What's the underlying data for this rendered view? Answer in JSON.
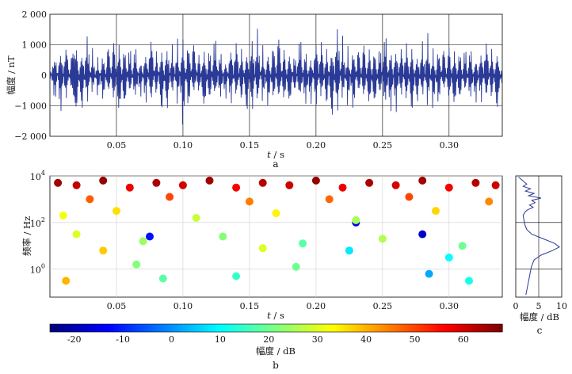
{
  "chart_data": [
    {
      "panel": "a",
      "type": "line",
      "panel_label": "a",
      "xlabel_var": "t",
      "xlabel_unit": " / s",
      "ylabel": "幅度 / nT",
      "xlim": [
        0.0,
        0.34
      ],
      "ylim": [
        -2000,
        2000
      ],
      "x_ticks": [
        0.05,
        0.1,
        0.15,
        0.2,
        0.25,
        0.3
      ],
      "x_tick_labels": [
        "0.05",
        "0.10",
        "0.15",
        "0.20",
        "0.25",
        "0.30"
      ],
      "y_ticks": [
        2000,
        1000,
        0,
        -1000,
        -2000
      ],
      "y_tick_labels": [
        "2 000",
        "1 000",
        "0",
        "−1 000",
        "−2 000"
      ],
      "grid": true,
      "color": "#2a3a96",
      "series": [
        {
          "x": [
            0.0,
            0.004,
            0.008,
            0.012,
            0.016,
            0.02,
            0.024,
            0.028,
            0.032,
            0.036,
            0.04,
            0.044,
            0.048,
            0.052,
            0.056,
            0.06,
            0.064,
            0.068,
            0.072,
            0.076,
            0.08,
            0.084,
            0.088,
            0.092,
            0.096,
            0.1,
            0.104,
            0.108,
            0.112,
            0.116,
            0.12,
            0.124,
            0.128,
            0.132,
            0.136,
            0.14,
            0.144,
            0.148,
            0.152,
            0.156,
            0.16,
            0.164,
            0.168,
            0.172,
            0.176,
            0.18,
            0.184,
            0.188,
            0.192,
            0.196,
            0.2,
            0.204,
            0.208,
            0.212,
            0.216,
            0.22,
            0.224,
            0.228,
            0.232,
            0.236,
            0.24,
            0.244,
            0.248,
            0.252,
            0.256,
            0.26,
            0.264,
            0.268,
            0.272,
            0.276,
            0.28,
            0.284,
            0.288,
            0.292,
            0.296,
            0.3,
            0.304,
            0.308,
            0.312,
            0.316,
            0.32,
            0.324,
            0.328,
            0.332,
            0.336,
            0.34
          ],
          "y": [
            350,
            -1050,
            1450,
            -1250,
            700,
            1300,
            -1400,
            1500,
            -900,
            800,
            -1100,
            1200,
            -1350,
            1650,
            -1500,
            1250,
            -1300,
            950,
            -1200,
            1500,
            -1000,
            1400,
            -1450,
            1100,
            -1250,
            1900,
            -1600,
            1300,
            -900,
            1450,
            -1350,
            1600,
            -1200,
            1000,
            -1300,
            1350,
            -1150,
            1450,
            -1650,
            1550,
            -1100,
            1250,
            -1350,
            1500,
            -1200,
            1300,
            -1000,
            1600,
            -1400,
            1200,
            -1500,
            1350,
            -1250,
            1700,
            -1900,
            1300,
            -1200,
            1450,
            -1150,
            1250,
            -1350,
            1400,
            -1300,
            1850,
            -1600,
            1500,
            -1200,
            1300,
            -1450,
            1150,
            -1250,
            1400,
            -1300,
            1350,
            -1100,
            1200,
            -1400,
            1250,
            -1200,
            1300,
            -1150,
            1200,
            -1350,
            1100,
            -1300,
            600
          ]
        }
      ]
    },
    {
      "panel": "b",
      "type": "scatter",
      "panel_label": "b",
      "xlabel_var": "t",
      "xlabel_unit": " / s",
      "ylabel": "频率 / Hz",
      "xlim": [
        0.0,
        0.34
      ],
      "ylim_log10": [
        -1.2,
        4.0
      ],
      "log_y": true,
      "x_ticks": [
        0.05,
        0.1,
        0.15,
        0.2,
        0.25,
        0.3
      ],
      "x_tick_labels": [
        "0.05",
        "0.10",
        "0.15",
        "0.20",
        "0.25",
        "0.30"
      ],
      "y_tick_exponents": [
        4,
        2,
        0
      ],
      "y_tick_base": "10",
      "grid": true,
      "colorbar": {
        "label": "幅度 / dB",
        "range": [
          -25,
          68
        ],
        "ticks": [
          -20,
          -10,
          0,
          10,
          20,
          30,
          40,
          50,
          60
        ],
        "tick_labels": [
          "-20",
          "-10",
          "0",
          "10",
          "20",
          "30",
          "40",
          "50",
          "60"
        ],
        "colormap": "jet"
      },
      "description_note": "",
      "points": [
        {
          "t": 0.006,
          "f_log10": 3.7,
          "db": 65
        },
        {
          "t": 0.02,
          "f_log10": 3.6,
          "db": 62
        },
        {
          "t": 0.04,
          "f_log10": 3.8,
          "db": 66
        },
        {
          "t": 0.06,
          "f_log10": 3.5,
          "db": 58
        },
        {
          "t": 0.08,
          "f_log10": 3.7,
          "db": 64
        },
        {
          "t": 0.1,
          "f_log10": 3.6,
          "db": 60
        },
        {
          "t": 0.12,
          "f_log10": 3.8,
          "db": 65
        },
        {
          "t": 0.14,
          "f_log10": 3.5,
          "db": 57
        },
        {
          "t": 0.16,
          "f_log10": 3.7,
          "db": 63
        },
        {
          "t": 0.18,
          "f_log10": 3.6,
          "db": 61
        },
        {
          "t": 0.2,
          "f_log10": 3.8,
          "db": 66
        },
        {
          "t": 0.22,
          "f_log10": 3.5,
          "db": 58
        },
        {
          "t": 0.24,
          "f_log10": 3.7,
          "db": 64
        },
        {
          "t": 0.26,
          "f_log10": 3.6,
          "db": 60
        },
        {
          "t": 0.28,
          "f_log10": 3.8,
          "db": 65
        },
        {
          "t": 0.3,
          "f_log10": 3.5,
          "db": 57
        },
        {
          "t": 0.32,
          "f_log10": 3.7,
          "db": 63
        },
        {
          "t": 0.335,
          "f_log10": 3.6,
          "db": 61
        },
        {
          "t": 0.03,
          "f_log10": 3.0,
          "db": 48
        },
        {
          "t": 0.09,
          "f_log10": 3.1,
          "db": 50
        },
        {
          "t": 0.15,
          "f_log10": 2.9,
          "db": 45
        },
        {
          "t": 0.21,
          "f_log10": 3.0,
          "db": 47
        },
        {
          "t": 0.27,
          "f_log10": 3.1,
          "db": 50
        },
        {
          "t": 0.33,
          "f_log10": 2.9,
          "db": 44
        },
        {
          "t": 0.01,
          "f_log10": 2.3,
          "db": 32
        },
        {
          "t": 0.05,
          "f_log10": 2.5,
          "db": 36
        },
        {
          "t": 0.11,
          "f_log10": 2.2,
          "db": 28
        },
        {
          "t": 0.17,
          "f_log10": 2.4,
          "db": 34
        },
        {
          "t": 0.23,
          "f_log10": 2.1,
          "db": 25
        },
        {
          "t": 0.29,
          "f_log10": 2.5,
          "db": 37
        },
        {
          "t": 0.02,
          "f_log10": 1.5,
          "db": 30
        },
        {
          "t": 0.07,
          "f_log10": 1.2,
          "db": 24
        },
        {
          "t": 0.13,
          "f_log10": 1.4,
          "db": 22
        },
        {
          "t": 0.19,
          "f_log10": 1.1,
          "db": 18
        },
        {
          "t": 0.25,
          "f_log10": 1.3,
          "db": 26
        },
        {
          "t": 0.31,
          "f_log10": 1.0,
          "db": 20
        },
        {
          "t": 0.012,
          "f_log10": -0.5,
          "db": 40
        },
        {
          "t": 0.065,
          "f_log10": 0.2,
          "db": 22
        },
        {
          "t": 0.085,
          "f_log10": -0.4,
          "db": 18
        },
        {
          "t": 0.14,
          "f_log10": -0.3,
          "db": 15
        },
        {
          "t": 0.185,
          "f_log10": 0.1,
          "db": 20
        },
        {
          "t": 0.225,
          "f_log10": 0.8,
          "db": 8
        },
        {
          "t": 0.285,
          "f_log10": -0.2,
          "db": 2
        },
        {
          "t": 0.3,
          "f_log10": 0.5,
          "db": 10
        },
        {
          "t": 0.315,
          "f_log10": -0.5,
          "db": 12
        },
        {
          "t": 0.28,
          "f_log10": 1.5,
          "db": -18
        },
        {
          "t": 0.23,
          "f_log10": 2.0,
          "db": -15
        },
        {
          "t": 0.075,
          "f_log10": 1.4,
          "db": -12
        },
        {
          "t": 0.04,
          "f_log10": 0.8,
          "db": 38
        },
        {
          "t": 0.16,
          "f_log10": 0.9,
          "db": 30
        }
      ]
    },
    {
      "panel": "c",
      "type": "line",
      "panel_label": "c",
      "xlabel": "幅度 / dB",
      "xlim": [
        0,
        10
      ],
      "ylim_log10": [
        -1.2,
        4.0
      ],
      "x_ticks": [
        0,
        5,
        10
      ],
      "x_tick_labels": [
        "0",
        "5",
        "10"
      ],
      "grid": true,
      "color": "#2a3a96",
      "series": [
        {
          "x": [
            0.6,
            1.2,
            1.8,
            2.4,
            1.6,
            3.2,
            2.1,
            4.0,
            2.8,
            5.5,
            3.5,
            4.2,
            3.0,
            3.8,
            2.6,
            2.0,
            1.6,
            1.8,
            2.0,
            2.4,
            3.5,
            6.0,
            8.5,
            9.5,
            8.0,
            5.5,
            4.0,
            3.4,
            3.0,
            2.6,
            2.2
          ],
          "y_log10": [
            3.95,
            3.85,
            3.75,
            3.65,
            3.55,
            3.45,
            3.35,
            3.25,
            3.15,
            3.05,
            2.95,
            2.85,
            2.75,
            2.65,
            2.55,
            2.45,
            2.3,
            2.1,
            1.9,
            1.7,
            1.5,
            1.3,
            1.1,
            0.95,
            0.8,
            0.6,
            0.4,
            0.1,
            -0.3,
            -0.7,
            -1.1
          ]
        }
      ]
    }
  ]
}
